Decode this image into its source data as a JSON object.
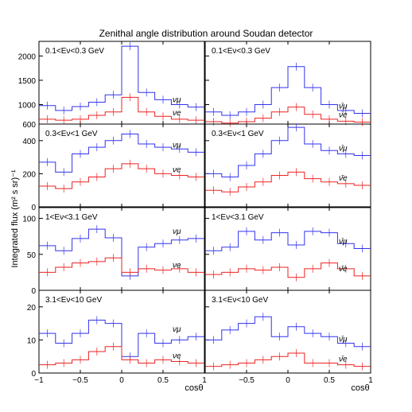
{
  "figure": {
    "title": "Zenithal angle distribution around Soudan detector",
    "ylabel": "Integrated flux (m² s sr)⁻¹",
    "xlabel": "cosθ"
  },
  "colors": {
    "numu": "#3333ee",
    "nue": "#ee2222",
    "frame": "#000000"
  },
  "chart_data": [
    {
      "type": "line",
      "step": true,
      "panel": "row1-left",
      "label": "0.1<Eν<0.3 GeV",
      "xlim": [
        -1,
        1
      ],
      "ylim": [
        600,
        2300
      ],
      "yticks": [
        600,
        1000,
        1500,
        2000
      ],
      "x_edges": [
        -1.0,
        -0.8,
        -0.6,
        -0.4,
        -0.2,
        0.0,
        0.2,
        0.4,
        0.6,
        0.8,
        1.0
      ],
      "series": [
        {
          "name": "νμ",
          "color_key": "numu",
          "values": [
            980,
            880,
            960,
            1050,
            1200,
            2200,
            1250,
            1100,
            1000,
            950
          ]
        },
        {
          "name": "νe",
          "color_key": "nue",
          "values": [
            700,
            680,
            700,
            780,
            850,
            1150,
            850,
            760,
            700,
            680
          ]
        }
      ]
    },
    {
      "type": "line",
      "step": true,
      "panel": "row1-right",
      "label": "0.1<Eν<0.3 GeV",
      "xlim": [
        -1,
        1
      ],
      "ylim": [
        600,
        2300
      ],
      "yticks": [
        600,
        1000,
        1500,
        2000
      ],
      "x_edges": [
        -1.0,
        -0.8,
        -0.6,
        -0.4,
        -0.2,
        0.0,
        0.2,
        0.4,
        0.6,
        0.8,
        1.0
      ],
      "series": [
        {
          "name": "ν̄μ",
          "color_key": "numu",
          "values": [
            850,
            780,
            850,
            1000,
            1350,
            1780,
            1350,
            1000,
            880,
            820
          ]
        },
        {
          "name": "ν̄e",
          "color_key": "nue",
          "values": [
            650,
            620,
            650,
            720,
            850,
            950,
            800,
            700,
            660,
            640
          ]
        }
      ]
    },
    {
      "type": "line",
      "step": true,
      "panel": "row2-left",
      "label": "0.3<Eν<1 GeV",
      "xlim": [
        -1,
        1
      ],
      "ylim": [
        0,
        500
      ],
      "yticks": [
        0,
        200,
        400
      ],
      "x_edges": [
        -1.0,
        -0.8,
        -0.6,
        -0.4,
        -0.2,
        0.0,
        0.2,
        0.4,
        0.6,
        0.8,
        1.0
      ],
      "series": [
        {
          "name": "νμ",
          "color_key": "numu",
          "values": [
            270,
            210,
            320,
            360,
            400,
            440,
            380,
            360,
            350,
            330
          ]
        },
        {
          "name": "νe",
          "color_key": "nue",
          "values": [
            125,
            110,
            150,
            180,
            230,
            260,
            230,
            200,
            190,
            180
          ]
        }
      ]
    },
    {
      "type": "line",
      "step": true,
      "panel": "row2-right",
      "label": "0.3<Eν<1 GeV",
      "xlim": [
        -1,
        1
      ],
      "ylim": [
        0,
        500
      ],
      "yticks": [
        0,
        200,
        400
      ],
      "x_edges": [
        -1.0,
        -0.8,
        -0.6,
        -0.4,
        -0.2,
        0.0,
        0.2,
        0.4,
        0.6,
        0.8,
        1.0
      ],
      "series": [
        {
          "name": "ν̄μ",
          "color_key": "numu",
          "values": [
            200,
            180,
            250,
            320,
            400,
            480,
            380,
            340,
            320,
            310
          ]
        },
        {
          "name": "ν̄e",
          "color_key": "nue",
          "values": [
            100,
            90,
            120,
            150,
            190,
            210,
            170,
            150,
            140,
            130
          ]
        }
      ]
    },
    {
      "type": "line",
      "step": true,
      "panel": "row3-left",
      "label": "1<Eν<3.1 GeV",
      "xlim": [
        -1,
        1
      ],
      "ylim": [
        0,
        115
      ],
      "yticks": [
        0,
        50,
        100
      ],
      "x_edges": [
        -1.0,
        -0.8,
        -0.6,
        -0.4,
        -0.2,
        0.0,
        0.2,
        0.4,
        0.6,
        0.8,
        1.0
      ],
      "series": [
        {
          "name": "νμ",
          "color_key": "numu",
          "values": [
            62,
            55,
            72,
            85,
            73,
            20,
            60,
            65,
            70,
            72
          ]
        },
        {
          "name": "νe",
          "color_key": "nue",
          "values": [
            25,
            32,
            38,
            40,
            45,
            25,
            30,
            28,
            30,
            25
          ]
        }
      ]
    },
    {
      "type": "line",
      "step": true,
      "panel": "row3-right",
      "label": "1<Eν<3.1 GeV",
      "xlim": [
        -1,
        1
      ],
      "ylim": [
        0,
        115
      ],
      "yticks": [
        0,
        50,
        100
      ],
      "x_edges": [
        -1.0,
        -0.8,
        -0.6,
        -0.4,
        -0.2,
        0.0,
        0.2,
        0.4,
        0.6,
        0.8,
        1.0
      ],
      "series": [
        {
          "name": "ν̄μ",
          "color_key": "numu",
          "values": [
            55,
            60,
            82,
            70,
            80,
            63,
            82,
            80,
            65,
            58
          ]
        },
        {
          "name": "ν̄e",
          "color_key": "nue",
          "values": [
            22,
            25,
            30,
            28,
            32,
            18,
            30,
            38,
            30,
            20
          ]
        }
      ]
    },
    {
      "type": "line",
      "step": true,
      "panel": "row4-left",
      "label": "3.1<Eν<10 GeV",
      "xlim": [
        -1,
        1
      ],
      "ylim": [
        0,
        25
      ],
      "yticks": [
        0,
        10,
        20
      ],
      "x_edges": [
        -1.0,
        -0.8,
        -0.6,
        -0.4,
        -0.2,
        0.0,
        0.2,
        0.4,
        0.6,
        0.8,
        1.0
      ],
      "series": [
        {
          "name": "νμ",
          "color_key": "numu",
          "values": [
            12,
            9,
            12,
            16,
            15,
            5,
            12,
            9,
            10,
            11
          ]
        },
        {
          "name": "νe",
          "color_key": "nue",
          "values": [
            2.5,
            3,
            4,
            6.5,
            8,
            4,
            3,
            4,
            3.5,
            3
          ]
        }
      ]
    },
    {
      "type": "line",
      "step": true,
      "panel": "row4-right",
      "label": "3.1<Eν<10 GeV",
      "xlim": [
        -1,
        1
      ],
      "ylim": [
        0,
        25
      ],
      "yticks": [
        0,
        10,
        20
      ],
      "x_edges": [
        -1.0,
        -0.8,
        -0.6,
        -0.4,
        -0.2,
        0.0,
        0.2,
        0.4,
        0.6,
        0.8,
        1.0
      ],
      "series": [
        {
          "name": "ν̄μ",
          "color_key": "numu",
          "values": [
            10,
            13,
            15,
            17,
            11,
            14,
            12,
            11,
            9,
            8
          ]
        },
        {
          "name": "ν̄e",
          "color_key": "nue",
          "values": [
            2,
            2.5,
            3,
            4,
            5,
            6,
            3,
            3,
            2.5,
            2
          ]
        }
      ]
    }
  ],
  "xaxis": {
    "ticks": [
      -1,
      -0.5,
      0,
      0.5,
      1
    ],
    "tick_labels_left": [
      "−1",
      "−0.5",
      "0",
      "0.5",
      "1"
    ],
    "tick_labels_right": [
      "−1",
      "−0.5",
      "0",
      "0.5",
      "1"
    ]
  }
}
